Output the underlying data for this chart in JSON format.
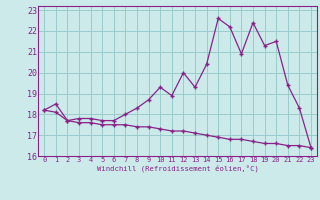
{
  "background_color": "#cceaea",
  "line_color": "#882288",
  "grid_color": "#99cccc",
  "xlim": [
    -0.5,
    23.5
  ],
  "ylim": [
    16,
    23.2
  ],
  "yticks": [
    16,
    17,
    18,
    19,
    20,
    21,
    22,
    23
  ],
  "xticks": [
    0,
    1,
    2,
    3,
    4,
    5,
    6,
    7,
    8,
    9,
    10,
    11,
    12,
    13,
    14,
    15,
    16,
    17,
    18,
    19,
    20,
    21,
    22,
    23
  ],
  "xlabel": "Windchill (Refroidissement éolien,°C)",
  "series1_x": [
    0,
    1,
    2,
    3,
    4,
    5,
    6,
    7,
    8,
    9,
    10,
    11,
    12,
    13,
    14,
    15,
    16,
    17,
    18,
    19,
    20,
    21,
    22,
    23
  ],
  "series1_y": [
    18.2,
    18.5,
    17.7,
    17.8,
    17.8,
    17.7,
    17.7,
    18.0,
    18.3,
    18.7,
    19.3,
    18.9,
    20.0,
    19.3,
    20.4,
    22.6,
    22.2,
    20.9,
    22.4,
    21.3,
    21.5,
    19.4,
    18.3,
    16.4
  ],
  "series2_x": [
    0,
    1,
    2,
    3,
    4,
    5,
    6,
    7,
    8,
    9,
    10,
    11,
    12,
    13,
    14,
    15,
    16,
    17,
    18,
    19,
    20,
    21,
    22,
    23
  ],
  "series2_y": [
    18.2,
    18.1,
    17.7,
    17.6,
    17.6,
    17.5,
    17.5,
    17.5,
    17.4,
    17.4,
    17.3,
    17.2,
    17.2,
    17.1,
    17.0,
    16.9,
    16.8,
    16.8,
    16.7,
    16.6,
    16.6,
    16.5,
    16.5,
    16.4
  ]
}
